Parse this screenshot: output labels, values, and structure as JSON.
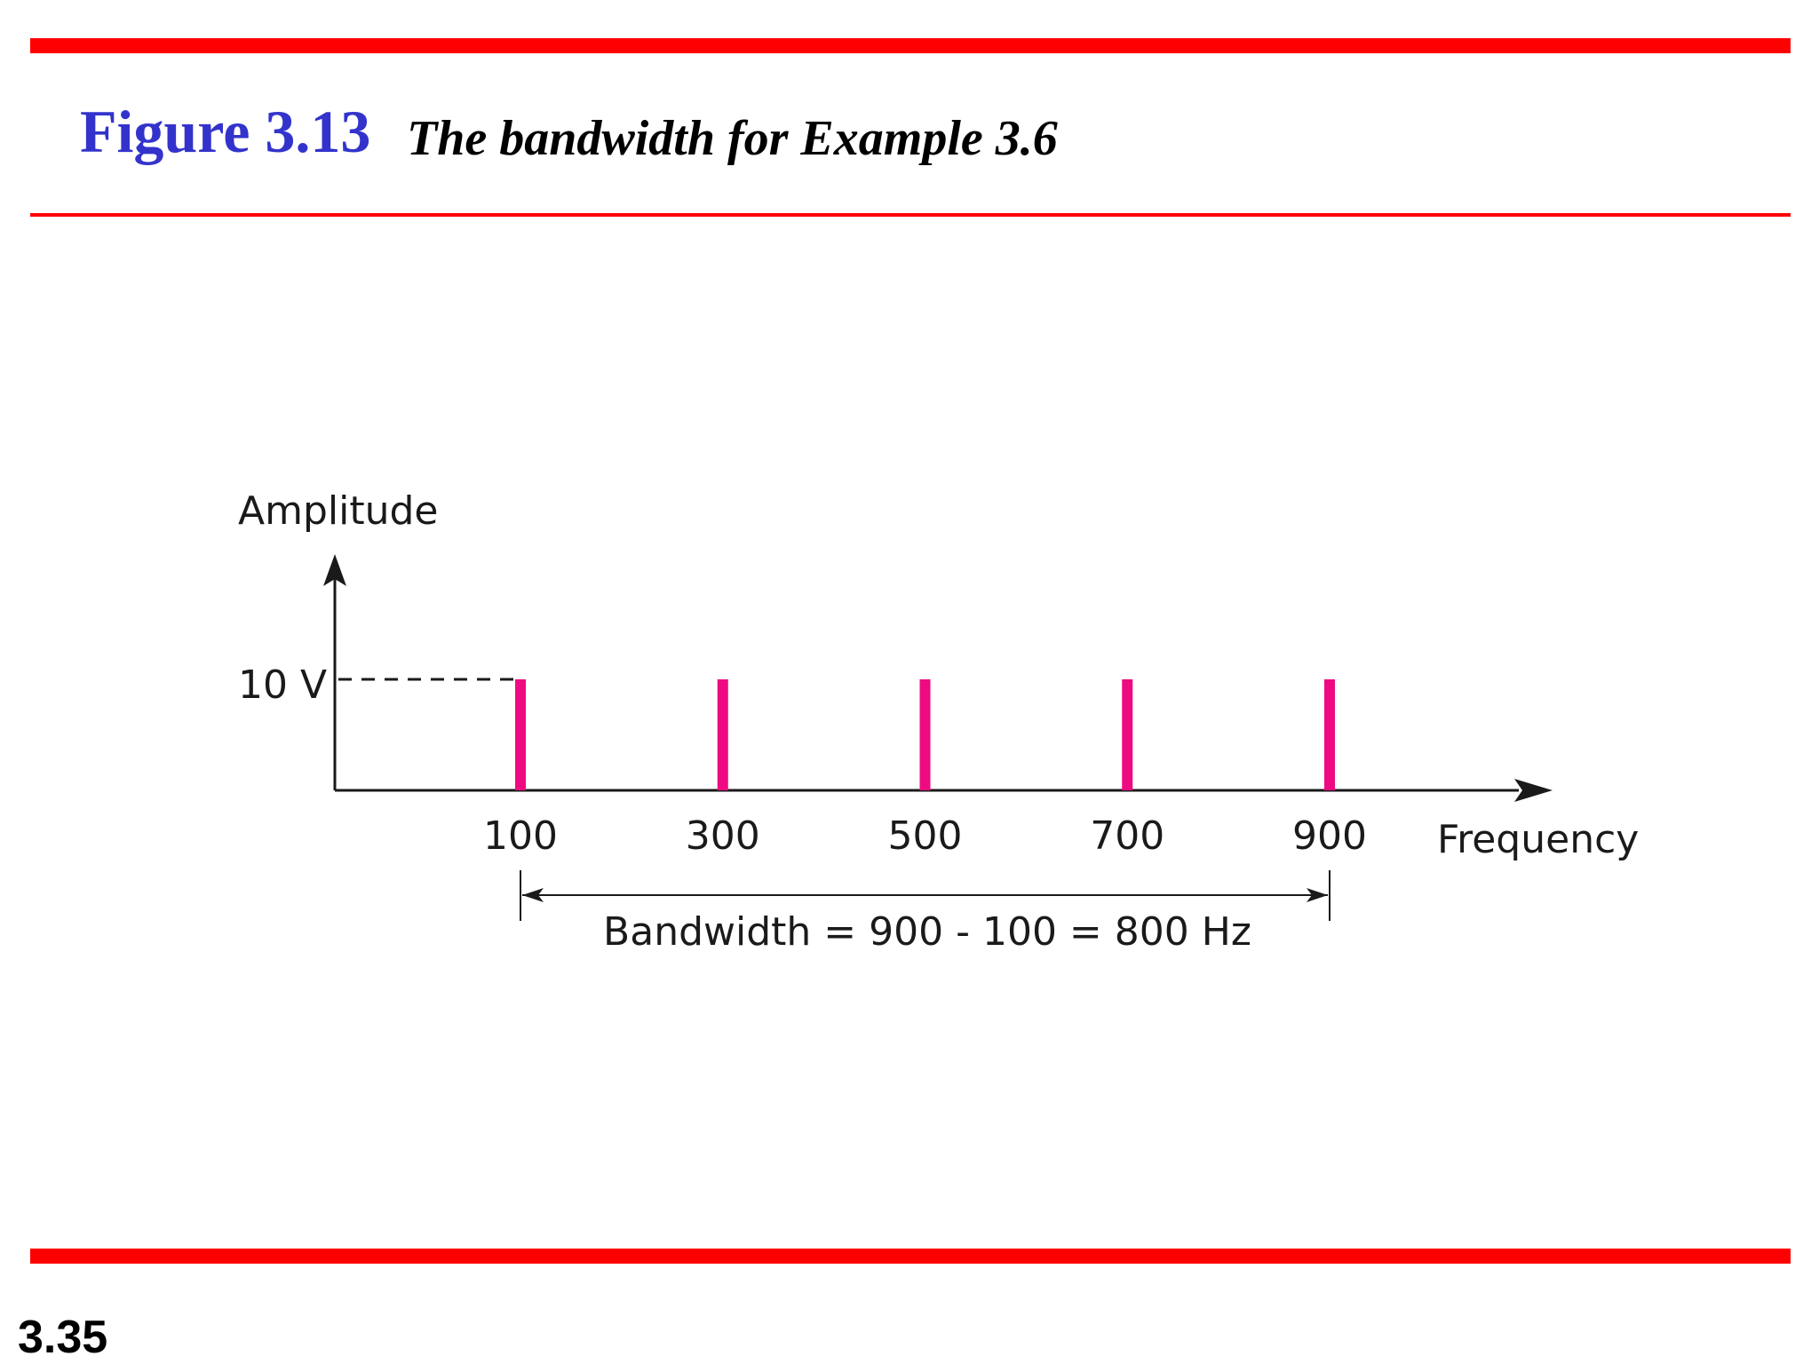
{
  "figure": {
    "label": "Figure 3.13",
    "caption": "The bandwidth for Example 3.6"
  },
  "slide_number": "3.35",
  "colors": {
    "rule": "#ff0000",
    "figure_label": "#3333cc",
    "bar": "#ee0a80",
    "axis": "#1a1a1a"
  },
  "chart_data": {
    "type": "bar",
    "ylabel": "Amplitude",
    "xlabel": "Frequency",
    "y_tick_label": "10 V",
    "y_tick_value": 10,
    "x": [
      100,
      300,
      500,
      700,
      900
    ],
    "x_tick_labels": [
      "100",
      "300",
      "500",
      "700",
      "900"
    ],
    "values": [
      10,
      10,
      10,
      10,
      10
    ],
    "ylim": [
      0,
      10
    ],
    "grid": false,
    "annotation": "Bandwidth = 900 - 100 = 800 Hz",
    "bandwidth_span": [
      100,
      900
    ]
  }
}
